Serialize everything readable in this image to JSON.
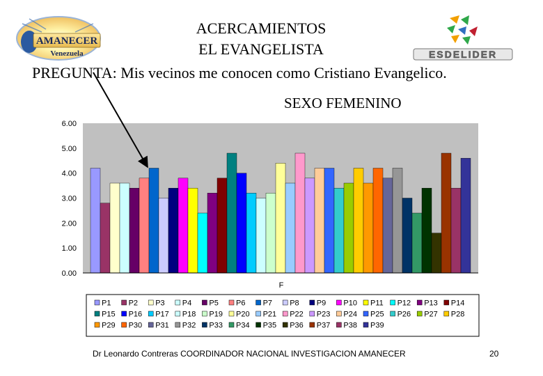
{
  "header": {
    "logo_left_text_1": "AMANECER",
    "logo_left_text_2": "Venezuela",
    "title_line_1": "ACERCAMIENTOS",
    "title_line_2": "EL EVANGELISTA",
    "logo_right_text": "ESDELIDER",
    "question": "PREGUNTA: Mis vecinos me conocen como Cristiano Evangelico.",
    "subtitle": "SEXO FEMENINO"
  },
  "footer": {
    "credit": "Dr Leonardo Contreras COORDINADOR NACIONAL INVESTIGACION AMANECER",
    "page_number": "20"
  },
  "chart_data": {
    "type": "bar",
    "title": "",
    "categories": [
      "F"
    ],
    "xlabel": "",
    "ylabel": "",
    "ylim": [
      0,
      6
    ],
    "y_ticks": [
      "0.00",
      "1.00",
      "2.00",
      "3.00",
      "4.00",
      "5.00",
      "6.00"
    ],
    "grid": false,
    "legend_position": "bottom",
    "series": [
      {
        "name": "P1",
        "values": [
          4.2
        ],
        "color": "#9999FF"
      },
      {
        "name": "P2",
        "values": [
          2.8
        ],
        "color": "#993366"
      },
      {
        "name": "P3",
        "values": [
          3.6
        ],
        "color": "#FFFFCC"
      },
      {
        "name": "P4",
        "values": [
          3.6
        ],
        "color": "#CCFFFF"
      },
      {
        "name": "P5",
        "values": [
          3.4
        ],
        "color": "#660066"
      },
      {
        "name": "P6",
        "values": [
          3.8
        ],
        "color": "#FF8080"
      },
      {
        "name": "P7",
        "values": [
          4.2
        ],
        "color": "#0066CC"
      },
      {
        "name": "P8",
        "values": [
          3.0
        ],
        "color": "#CCCCFF"
      },
      {
        "name": "P9",
        "values": [
          3.4
        ],
        "color": "#000080"
      },
      {
        "name": "P10",
        "values": [
          3.8
        ],
        "color": "#FF00FF"
      },
      {
        "name": "P11",
        "values": [
          3.4
        ],
        "color": "#FFFF00"
      },
      {
        "name": "P12",
        "values": [
          2.4
        ],
        "color": "#00FFFF"
      },
      {
        "name": "P13",
        "values": [
          3.2
        ],
        "color": "#800080"
      },
      {
        "name": "P14",
        "values": [
          3.8
        ],
        "color": "#800000"
      },
      {
        "name": "P15",
        "values": [
          4.8
        ],
        "color": "#008080"
      },
      {
        "name": "P16",
        "values": [
          4.0
        ],
        "color": "#0000FF"
      },
      {
        "name": "P17",
        "values": [
          3.2
        ],
        "color": "#00CCFF"
      },
      {
        "name": "P18",
        "values": [
          3.0
        ],
        "color": "#CCFFFF"
      },
      {
        "name": "P19",
        "values": [
          3.2
        ],
        "color": "#CCFFCC"
      },
      {
        "name": "P20",
        "values": [
          4.4
        ],
        "color": "#FFFF99"
      },
      {
        "name": "P21",
        "values": [
          3.6
        ],
        "color": "#99CCFF"
      },
      {
        "name": "P22",
        "values": [
          4.8
        ],
        "color": "#FF99CC"
      },
      {
        "name": "P23",
        "values": [
          3.8
        ],
        "color": "#CC99FF"
      },
      {
        "name": "P24",
        "values": [
          4.2
        ],
        "color": "#FFCC99"
      },
      {
        "name": "P25",
        "values": [
          4.2
        ],
        "color": "#3366FF"
      },
      {
        "name": "P26",
        "values": [
          3.4
        ],
        "color": "#33CCCC"
      },
      {
        "name": "P27",
        "values": [
          3.6
        ],
        "color": "#99CC00"
      },
      {
        "name": "P28",
        "values": [
          4.2
        ],
        "color": "#FFCC00"
      },
      {
        "name": "P29",
        "values": [
          3.6
        ],
        "color": "#FF9900"
      },
      {
        "name": "P30",
        "values": [
          4.2
        ],
        "color": "#FF6600"
      },
      {
        "name": "P31",
        "values": [
          3.8
        ],
        "color": "#666699"
      },
      {
        "name": "P32",
        "values": [
          4.2
        ],
        "color": "#969696"
      },
      {
        "name": "P33",
        "values": [
          3.0
        ],
        "color": "#003366"
      },
      {
        "name": "P34",
        "values": [
          2.4
        ],
        "color": "#339966"
      },
      {
        "name": "P35",
        "values": [
          3.4
        ],
        "color": "#003300"
      },
      {
        "name": "P36",
        "values": [
          1.6
        ],
        "color": "#333300"
      },
      {
        "name": "P37",
        "values": [
          4.8
        ],
        "color": "#993300"
      },
      {
        "name": "P38",
        "values": [
          3.4
        ],
        "color": "#993366"
      },
      {
        "name": "P39",
        "values": [
          4.6
        ],
        "color": "#333399"
      }
    ]
  }
}
